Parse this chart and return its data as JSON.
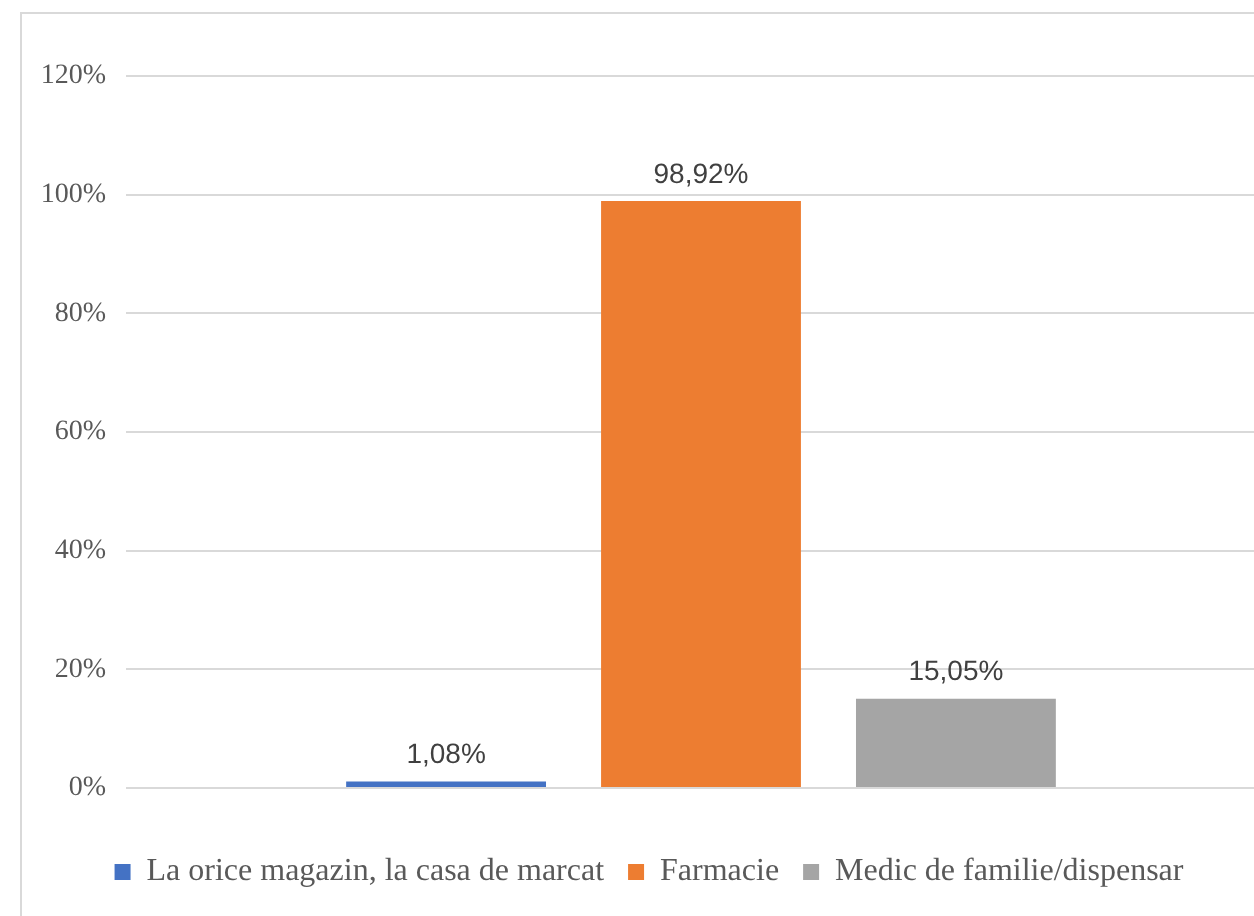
{
  "chart_data": {
    "type": "bar",
    "categories": [
      null
    ],
    "series": [
      {
        "name": "La orice magazin, la casa de marcat",
        "color": "#4472c4",
        "values": [
          1.08
        ],
        "value_labels": [
          "1,08%"
        ]
      },
      {
        "name": "Farmacie",
        "color": "#ed7d31",
        "values": [
          98.92
        ],
        "value_labels": [
          "98,92%"
        ]
      },
      {
        "name": "Medic de familie/dispensar",
        "color": "#a5a5a5",
        "values": [
          15.05
        ],
        "value_labels": [
          "15,05%"
        ]
      }
    ],
    "ylim": [
      0,
      120
    ],
    "yticks": [
      {
        "value": 0,
        "label": "0%"
      },
      {
        "value": 20,
        "label": "20%"
      },
      {
        "value": 40,
        "label": "40%"
      },
      {
        "value": 60,
        "label": "60%"
      },
      {
        "value": 80,
        "label": "80%"
      },
      {
        "value": 100,
        "label": "100%"
      },
      {
        "value": 120,
        "label": "120%"
      }
    ],
    "grid": "y",
    "legend": "bottom"
  }
}
